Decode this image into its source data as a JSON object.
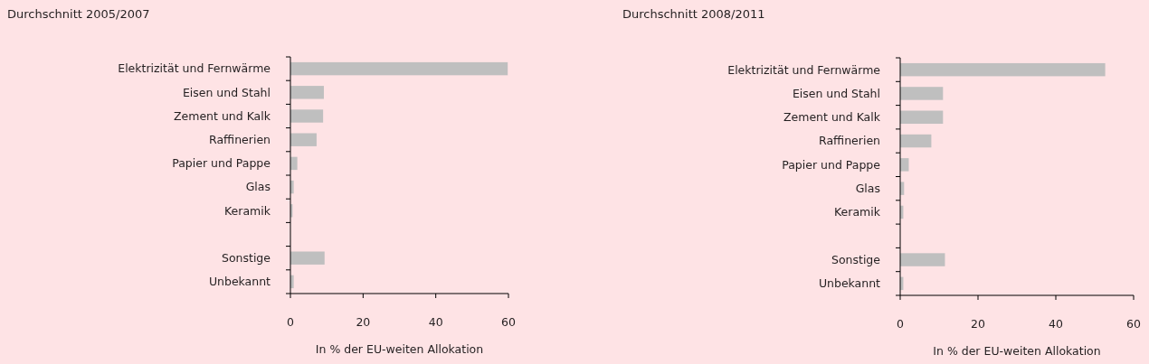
{
  "chart_data": [
    {
      "type": "bar",
      "orientation": "horizontal",
      "title": "Durchschnitt 2005/2007",
      "xlabel": "In % der EU-weiten Allokation",
      "categories": [
        "Elektrizität und Fernwärme",
        "Eisen und Stahl",
        "Zement und Kalk",
        "Raffinerien",
        "Papier und Pappe",
        "Glas",
        "Keramik",
        null,
        "Sonstige",
        "Unbekannt"
      ],
      "values": [
        59.8,
        9.2,
        9.0,
        7.2,
        1.9,
        0.9,
        0.6,
        null,
        9.4,
        0.9
      ],
      "color": "#bfbfbf",
      "xlim": [
        0,
        60
      ],
      "xticks": [
        0,
        20,
        40,
        60
      ]
    },
    {
      "type": "bar",
      "orientation": "horizontal",
      "title": "Durchschnitt 2008/2011",
      "xlabel": "In % der EU-weiten Allokation",
      "categories": [
        "Elektrizität und Fernwärme",
        "Eisen und Stahl",
        "Zement und Kalk",
        "Raffinerien",
        "Papier und Pappe",
        "Glas",
        "Keramik",
        null,
        "Sonstige",
        "Unbekannt"
      ],
      "values": [
        52.7,
        11.0,
        11.0,
        8.0,
        2.2,
        1.0,
        0.8,
        null,
        11.5,
        0.8
      ],
      "color": "#bfbfbf",
      "xlim": [
        0,
        60
      ],
      "xticks": [
        0,
        20,
        40,
        60
      ]
    }
  ]
}
